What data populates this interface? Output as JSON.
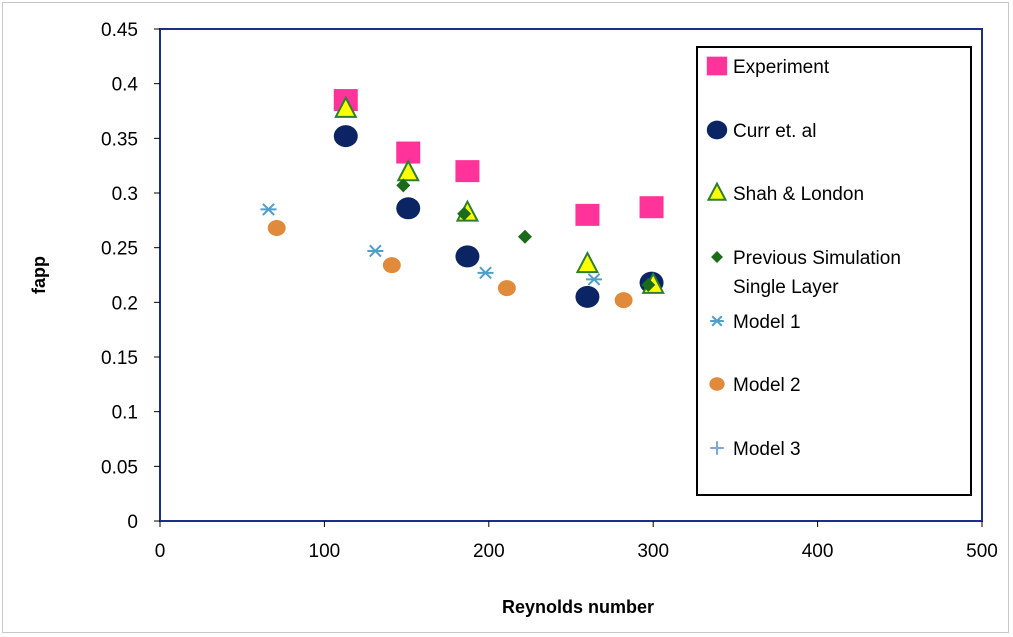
{
  "chart_data": {
    "type": "scatter",
    "title": "",
    "xlabel": "Reynolds number",
    "ylabel": "fapp",
    "xlim": [
      0,
      500
    ],
    "ylim": [
      0,
      0.45
    ],
    "x_ticks": [
      "0",
      "100",
      "200",
      "300",
      "400",
      "500"
    ],
    "y_ticks": [
      "0",
      "0.05",
      "0.1",
      "0.15",
      "0.2",
      "0.25",
      "0.3",
      "0.35",
      "0.4",
      "0.45"
    ],
    "grid": false,
    "legend_position": "right",
    "series": [
      {
        "name": "Experiment",
        "marker": "square",
        "color": "#ff3399",
        "x": [
          113,
          151,
          187,
          260,
          299
        ],
        "y": [
          0.385,
          0.337,
          0.32,
          0.28,
          0.287
        ]
      },
      {
        "name": "Curr et. al",
        "marker": "circle",
        "color": "#0b2463",
        "x": [
          113,
          151,
          187,
          260,
          299
        ],
        "y": [
          0.352,
          0.286,
          0.242,
          0.205,
          0.218
        ]
      },
      {
        "name": "Shah & London",
        "marker": "triangle",
        "color": "#ffff00",
        "stroke": "#2e7d32",
        "x": [
          113,
          151,
          187,
          260,
          300
        ],
        "y": [
          0.377,
          0.319,
          0.282,
          0.235,
          0.216
        ]
      },
      {
        "name": [
          "Previous Simulation",
          "Single Layer"
        ],
        "marker": "diamond",
        "color": "#1a6b1a",
        "x": [
          148,
          185,
          222,
          297
        ],
        "y": [
          0.307,
          0.281,
          0.26,
          0.216
        ]
      },
      {
        "name": "Model 1",
        "marker": "asterisk",
        "color": "#4f9fc7",
        "x": [
          66,
          131,
          198,
          264
        ],
        "y": [
          0.285,
          0.247,
          0.227,
          0.221
        ]
      },
      {
        "name": "Model 2",
        "marker": "circle-small",
        "color": "#e08a3c",
        "x": [
          71,
          141,
          211,
          282
        ],
        "y": [
          0.268,
          0.234,
          0.213,
          0.202
        ]
      },
      {
        "name": "Model 3",
        "marker": "plus",
        "color": "#7fa6d6",
        "x": [],
        "y": []
      }
    ]
  }
}
